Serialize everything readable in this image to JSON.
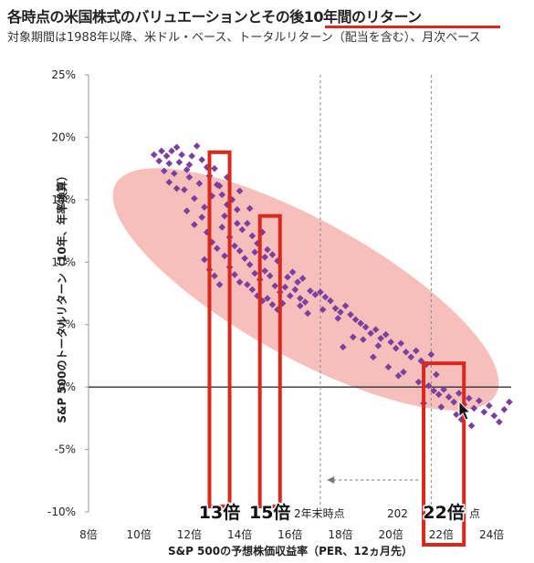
{
  "page": {
    "title": "各時点の米国株式のバリュエーションとその後10年間のリターン",
    "subtitle": "対象期間は1988年以降、米ドル・ベース、トータルリターン（配当を含む）、月次ベース"
  },
  "chart_data": {
    "type": "scatter",
    "xlabel": "S&P 500の予想株価収益率（PER、12ヵ月先）",
    "ylabel": "S&P 500のトータルリターン（10年、年率換算）",
    "xlim": [
      8,
      25
    ],
    "ylim": [
      -10,
      25
    ],
    "x_ticks": [
      8,
      10,
      12,
      14,
      16,
      18,
      20,
      22,
      24
    ],
    "x_tick_labels": [
      "8倍",
      "10倍",
      "12倍",
      "14倍",
      "16倍",
      "18倍",
      "20倍",
      "22倍",
      "24倍"
    ],
    "y_ticks": [
      -10,
      -5,
      0,
      5,
      10,
      15,
      20,
      25
    ],
    "y_tick_labels": [
      "-10%",
      "-5%",
      "0%",
      "5%",
      "10%",
      "15%",
      "20%",
      "25%"
    ],
    "dashed_reference_x": [
      17.2,
      21.6
    ],
    "highlight_boxes": [
      {
        "label": "13倍",
        "x_range": [
          12.8,
          13.6
        ],
        "y_top": 18.8
      },
      {
        "label": "15倍",
        "x_range": [
          14.8,
          15.6
        ],
        "y_top": 13.7
      },
      {
        "label": "22倍",
        "x_range": [
          21.3,
          22.9
        ],
        "y_top": 1.9
      }
    ],
    "annotations": [
      "2年末時点",
      "202",
      "点"
    ],
    "series": [
      {
        "color": "#7b3f9e",
        "points": [
          [
            10.9,
            18.9
          ],
          [
            11.1,
            18.5
          ],
          [
            11.3,
            18.9
          ],
          [
            11.5,
            19.2
          ],
          [
            11.7,
            18.6
          ],
          [
            11.2,
            17.9
          ],
          [
            11.6,
            18.0
          ],
          [
            11.9,
            17.4
          ],
          [
            12.1,
            18.5
          ],
          [
            12.3,
            19.3
          ],
          [
            12.5,
            18.2
          ],
          [
            12.7,
            17.6
          ],
          [
            12.0,
            16.8
          ],
          [
            12.4,
            16.3
          ],
          [
            11.8,
            15.8
          ],
          [
            11.4,
            17.1
          ],
          [
            12.2,
            15.1
          ],
          [
            12.6,
            14.4
          ],
          [
            12.9,
            15.3
          ],
          [
            13.1,
            16.2
          ],
          [
            13.3,
            15.4
          ],
          [
            13.5,
            14.6
          ],
          [
            13.7,
            15.0
          ],
          [
            13.9,
            14.2
          ],
          [
            12.8,
            16.9
          ],
          [
            13.0,
            17.5
          ],
          [
            13.2,
            16.1
          ],
          [
            12.5,
            13.6
          ],
          [
            12.7,
            12.4
          ],
          [
            12.9,
            11.6
          ],
          [
            13.1,
            11.1
          ],
          [
            13.3,
            12.8
          ],
          [
            13.6,
            12.0
          ],
          [
            13.8,
            11.3
          ],
          [
            14.0,
            10.9
          ],
          [
            14.2,
            10.3
          ],
          [
            14.4,
            9.8
          ],
          [
            14.6,
            9.1
          ],
          [
            14.8,
            8.6
          ],
          [
            15.0,
            9.3
          ],
          [
            15.2,
            8.9
          ],
          [
            15.4,
            8.1
          ],
          [
            15.6,
            7.6
          ],
          [
            15.8,
            8.0
          ],
          [
            16.0,
            7.3
          ],
          [
            16.2,
            7.8
          ],
          [
            16.4,
            7.1
          ],
          [
            16.6,
            6.8
          ],
          [
            13.4,
            10.5
          ],
          [
            13.6,
            9.6
          ],
          [
            13.8,
            9.0
          ],
          [
            14.0,
            8.4
          ],
          [
            14.3,
            8.2
          ],
          [
            14.5,
            7.8
          ],
          [
            14.7,
            7.3
          ],
          [
            14.9,
            6.9
          ],
          [
            15.1,
            7.1
          ],
          [
            15.3,
            6.6
          ],
          [
            15.5,
            6.2
          ],
          [
            15.7,
            6.7
          ],
          [
            12.6,
            10.2
          ],
          [
            12.8,
            9.4
          ],
          [
            13.0,
            8.9
          ],
          [
            13.2,
            8.2
          ],
          [
            14.1,
            12.6
          ],
          [
            14.3,
            13.1
          ],
          [
            14.5,
            12.1
          ],
          [
            14.7,
            11.5
          ],
          [
            14.9,
            12.4
          ],
          [
            15.1,
            11.0
          ],
          [
            15.3,
            10.6
          ],
          [
            15.5,
            10.1
          ],
          [
            15.9,
            8.8
          ],
          [
            16.1,
            9.2
          ],
          [
            16.3,
            8.4
          ],
          [
            16.5,
            8.7
          ],
          [
            16.8,
            7.7
          ],
          [
            17.0,
            7.4
          ],
          [
            17.2,
            7.6
          ],
          [
            17.4,
            7.2
          ],
          [
            17.6,
            6.9
          ],
          [
            17.8,
            6.3
          ],
          [
            18.0,
            6.0
          ],
          [
            18.2,
            6.5
          ],
          [
            18.4,
            5.8
          ],
          [
            18.6,
            5.4
          ],
          [
            18.8,
            5.1
          ],
          [
            19.0,
            4.8
          ],
          [
            19.2,
            4.3
          ],
          [
            19.4,
            4.6
          ],
          [
            19.6,
            3.9
          ],
          [
            19.8,
            4.2
          ],
          [
            20.0,
            3.6
          ],
          [
            20.2,
            3.1
          ],
          [
            20.4,
            3.5
          ],
          [
            20.6,
            2.8
          ],
          [
            20.8,
            2.4
          ],
          [
            21.0,
            2.9
          ],
          [
            21.2,
            2.1
          ],
          [
            21.4,
            1.8
          ],
          [
            21.6,
            2.6
          ],
          [
            18.1,
            3.2
          ],
          [
            18.5,
            4.0
          ],
          [
            19.3,
            2.4
          ],
          [
            19.9,
            1.6
          ],
          [
            20.5,
            1.2
          ],
          [
            21.1,
            0.4
          ],
          [
            21.5,
            0.1
          ],
          [
            21.7,
            -0.3
          ],
          [
            21.9,
            -0.6
          ],
          [
            22.1,
            -0.2
          ],
          [
            22.3,
            -0.8
          ],
          [
            22.5,
            -1.2
          ],
          [
            22.7,
            -0.5
          ],
          [
            22.9,
            -1.4
          ],
          [
            23.1,
            -0.9
          ],
          [
            23.3,
            -1.7
          ],
          [
            23.5,
            -1.1
          ],
          [
            23.7,
            -2.0
          ],
          [
            23.9,
            -1.5
          ],
          [
            24.1,
            -2.3
          ],
          [
            24.3,
            -2.8
          ],
          [
            24.5,
            -1.8
          ],
          [
            24.7,
            -1.2
          ],
          [
            22.6,
            -2.2
          ],
          [
            23.2,
            -3.1
          ],
          [
            22.0,
            -1.6
          ],
          [
            21.8,
            1.0
          ],
          [
            12.2,
            13.0
          ],
          [
            11.9,
            14.1
          ],
          [
            11.5,
            15.9
          ],
          [
            11.0,
            17.3
          ],
          [
            10.8,
            18.1
          ],
          [
            13.5,
            16.8
          ],
          [
            14.0,
            15.7
          ],
          [
            14.4,
            14.3
          ],
          [
            13.9,
            13.1
          ],
          [
            15.0,
            10.4
          ],
          [
            16.7,
            5.9
          ],
          [
            17.3,
            6.2
          ],
          [
            18.9,
            3.8
          ],
          [
            21.3,
            -1.3
          ],
          [
            10.6,
            18.6
          ],
          [
            11.2,
            16.4
          ],
          [
            12.0,
            17.8
          ],
          [
            13.4,
            13.7
          ],
          [
            14.6,
            10.8
          ],
          [
            16.4,
            6.5
          ],
          [
            17.9,
            5.5
          ],
          [
            19.5,
            3.3
          ],
          [
            20.3,
            0.9
          ],
          [
            22.8,
            -2.6
          ]
        ]
      }
    ]
  }
}
